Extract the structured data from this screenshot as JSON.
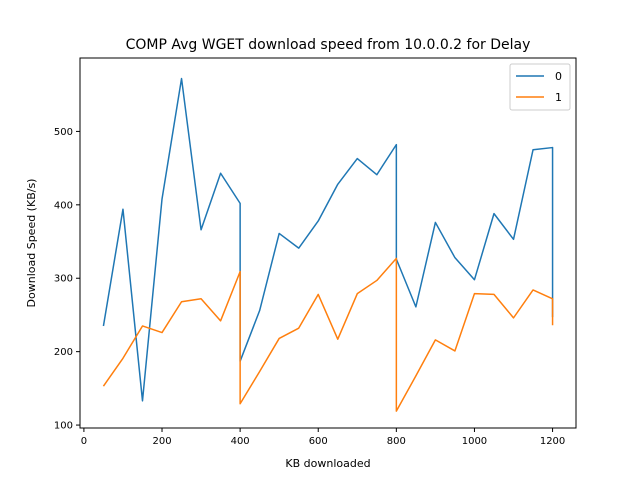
{
  "chart_data": {
    "type": "line",
    "title": "COMP Avg WGET download speed from 10.0.0.2 for Delay",
    "xlabel": "KB downloaded",
    "ylabel": "Download Speed (KB/s)",
    "xlim": [
      -10,
      1260
    ],
    "ylim": [
      96,
      600
    ],
    "xticks": [
      0,
      200,
      400,
      600,
      800,
      1000,
      1200
    ],
    "yticks": [
      100,
      200,
      300,
      400,
      500
    ],
    "legend": "top-right",
    "grid": false,
    "series": [
      {
        "name": "0",
        "color": "#1f77b4",
        "points": [
          [
            50,
            235
          ],
          [
            100,
            394
          ],
          [
            150,
            133
          ],
          [
            200,
            408
          ],
          [
            250,
            572
          ],
          [
            300,
            366
          ],
          [
            350,
            443
          ],
          [
            400,
            402
          ],
          [
            400,
            187
          ],
          [
            450,
            256
          ],
          [
            500,
            361
          ],
          [
            550,
            341
          ],
          [
            600,
            378
          ],
          [
            650,
            428
          ],
          [
            700,
            463
          ],
          [
            750,
            441
          ],
          [
            800,
            482
          ],
          [
            800,
            326
          ],
          [
            850,
            261
          ],
          [
            900,
            376
          ],
          [
            950,
            328
          ],
          [
            1000,
            298
          ],
          [
            1050,
            388
          ],
          [
            1100,
            353
          ],
          [
            1150,
            475
          ],
          [
            1200,
            478
          ],
          [
            1200,
            247
          ]
        ]
      },
      {
        "name": "1",
        "color": "#ff7f0e",
        "points": [
          [
            50,
            153
          ],
          [
            100,
            191
          ],
          [
            150,
            235
          ],
          [
            200,
            226
          ],
          [
            250,
            268
          ],
          [
            300,
            272
          ],
          [
            350,
            242
          ],
          [
            400,
            309
          ],
          [
            400,
            129
          ],
          [
            450,
            173
          ],
          [
            500,
            218
          ],
          [
            550,
            232
          ],
          [
            600,
            278
          ],
          [
            650,
            217
          ],
          [
            700,
            279
          ],
          [
            750,
            297
          ],
          [
            800,
            327
          ],
          [
            800,
            119
          ],
          [
            850,
            167
          ],
          [
            900,
            216
          ],
          [
            950,
            201
          ],
          [
            1000,
            279
          ],
          [
            1050,
            278
          ],
          [
            1100,
            246
          ],
          [
            1150,
            284
          ],
          [
            1200,
            272
          ],
          [
            1200,
            236
          ]
        ]
      }
    ]
  }
}
